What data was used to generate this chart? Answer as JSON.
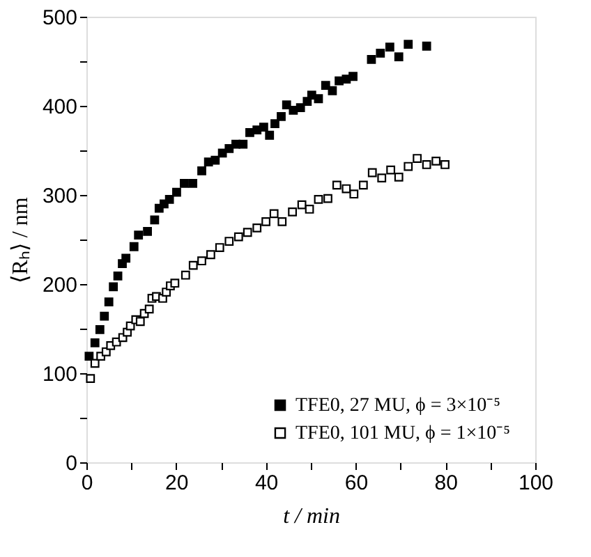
{
  "chart_data": {
    "type": "scatter",
    "xlabel": "t / min",
    "ylabel": "⟨Rₕ⟩ / nm",
    "xlim": [
      0,
      100
    ],
    "ylim": [
      0,
      500
    ],
    "xticks": [
      0,
      {
        "value": 10,
        "label": null
      },
      20,
      {
        "value": 30,
        "label": null
      },
      40,
      {
        "value": 50,
        "label": null
      },
      60,
      {
        "value": 70,
        "label": null
      },
      80,
      {
        "value": 90,
        "label": null
      },
      100
    ],
    "yticks": [
      0,
      {
        "value": 50,
        "label": null
      },
      100,
      {
        "value": 150,
        "label": null
      },
      200,
      {
        "value": 250,
        "label": null
      },
      300,
      {
        "value": 350,
        "label": null
      },
      400,
      {
        "value": 450,
        "label": null
      },
      500
    ],
    "grid": false,
    "legend": "bottom right",
    "series": [
      {
        "name": "TFE0, 27 MU, ϕ = 3×10⁻⁵",
        "color": "#000000",
        "marker": "square",
        "x": [
          0.6,
          1.9,
          3.0,
          4.0,
          5.0,
          6.0,
          7.0,
          8.0,
          8.8,
          10.6,
          11.6,
          13.6,
          15.2,
          16.2,
          17.3,
          18.5,
          20.1,
          21.8,
          23.7,
          25.7,
          27.2,
          28.7,
          30.3,
          31.8,
          33.3,
          34.9,
          36.4,
          38.0,
          39.5,
          40.8,
          42.0,
          43.4,
          44.6,
          46.1,
          47.7,
          49.2,
          50.2,
          51.7,
          53.3,
          54.8,
          56.3,
          57.9,
          59.4,
          63.5,
          65.5,
          67.6,
          69.6,
          71.7,
          75.8
        ],
        "values": [
          119,
          134,
          149,
          164,
          180,
          197,
          209,
          223,
          229,
          242,
          255,
          259,
          272,
          285,
          290,
          295,
          303,
          313,
          313,
          327,
          337,
          339,
          347,
          352,
          357,
          357,
          370,
          373,
          376,
          367,
          380,
          388,
          401,
          395,
          398,
          405,
          412,
          408,
          423,
          417,
          428,
          430,
          433,
          452,
          459,
          466,
          455,
          469,
          467
        ]
      },
      {
        "name": "TFE0, 101 MU,  ϕ = 1×10⁻⁵",
        "color": "#000000",
        "marker": "square_open",
        "x": [
          0.9,
          1.9,
          3.2,
          4.4,
          5.4,
          6.7,
          8.1,
          9.1,
          9.8,
          11.0,
          12.0,
          12.9,
          14.0,
          14.6,
          15.6,
          17.0,
          17.8,
          18.7,
          19.7,
          22.1,
          23.8,
          25.7,
          27.7,
          29.7,
          31.8,
          33.9,
          35.9,
          38.0,
          40.0,
          41.8,
          43.6,
          45.9,
          48.0,
          49.7,
          51.7,
          53.8,
          55.8,
          57.9,
          59.6,
          61.7,
          63.7,
          65.8,
          67.8,
          69.6,
          71.7,
          73.7,
          75.8,
          77.9,
          79.9
        ],
        "values": [
          94,
          111,
          119,
          124,
          131,
          135,
          140,
          146,
          153,
          160,
          158,
          167,
          172,
          184,
          186,
          184,
          191,
          198,
          201,
          210,
          221,
          226,
          233,
          241,
          248,
          253,
          258,
          263,
          270,
          279,
          270,
          281,
          289,
          284,
          295,
          296,
          311,
          307,
          301,
          311,
          325,
          319,
          328,
          320,
          332,
          341,
          334,
          338,
          334
        ]
      }
    ]
  }
}
